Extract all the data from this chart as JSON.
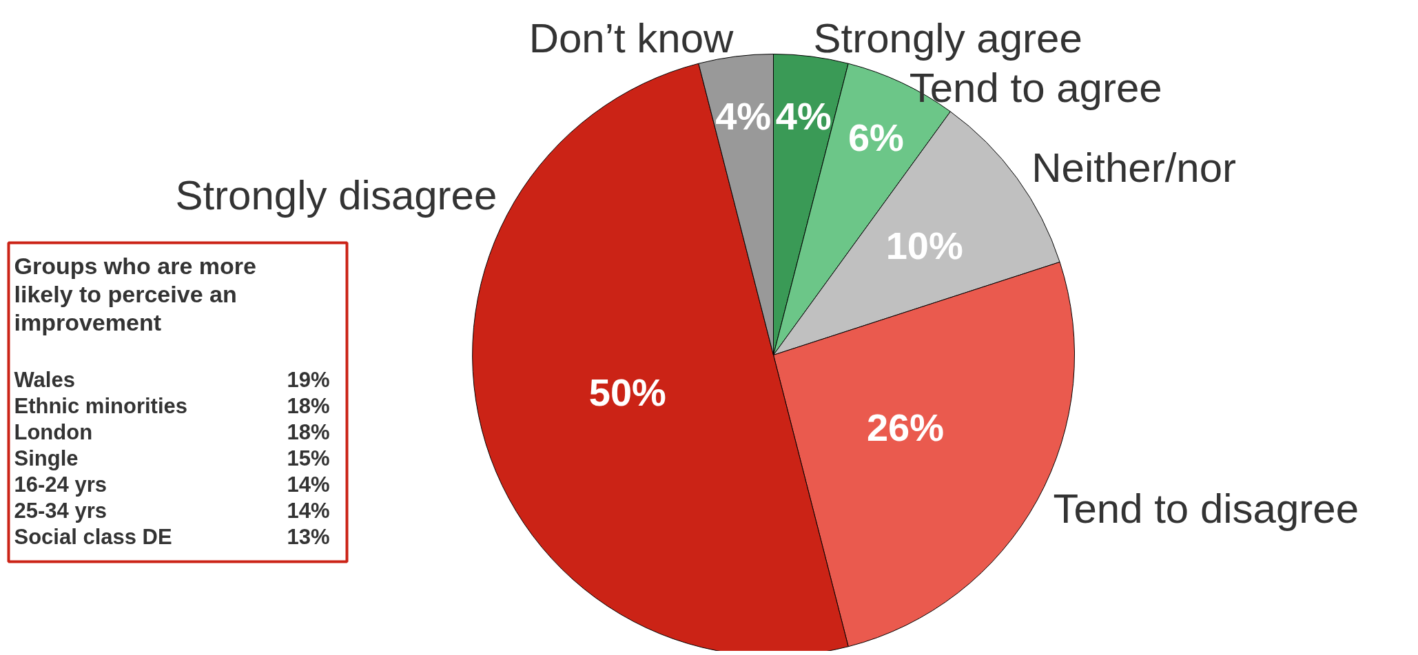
{
  "chart_data": [
    {
      "type": "pie",
      "categories": [
        "Strongly agree",
        "Tend to agree",
        "Neither/nor",
        "Tend to disagree",
        "Strongly disagree",
        "Don’t know"
      ],
      "values": [
        4,
        6,
        10,
        26,
        50,
        4
      ],
      "colors": [
        "#3a9a56",
        "#6cc688",
        "#c0c0c0",
        "#ea5a4e",
        "#cb2316",
        "#999999"
      ],
      "value_labels": [
        "4%",
        "6%",
        "10%",
        "26%",
        "50%",
        "4%"
      ]
    },
    {
      "type": "other",
      "title": "Groups who are more likely to perceive an improvement",
      "categories": [
        "Wales",
        "Ethnic minorities",
        "London",
        "Single",
        "16-24 yrs",
        "25-34 yrs",
        "Social class DE"
      ],
      "values": [
        19,
        18,
        18,
        15,
        14,
        14,
        13
      ],
      "value_labels": [
        "19%",
        "18%",
        "18%",
        "15%",
        "14%",
        "14%",
        "13%"
      ]
    }
  ]
}
